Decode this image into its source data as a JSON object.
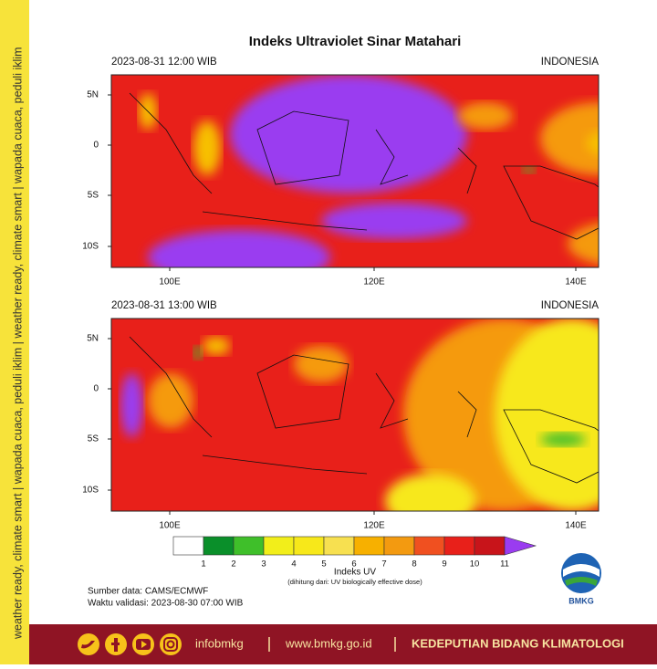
{
  "sidebar_text": "weather ready, climate smart | wapada cuaca, peduli iklim | weather ready, climate smart | wapada cuaca, peduli iklim",
  "title": "Indeks Ultraviolet Sinar Matahari",
  "panels": [
    {
      "time": "2023-08-31  12:00 WIB",
      "region": "INDONESIA",
      "lat_labels": [
        "5N",
        "0",
        "5S",
        "10S"
      ],
      "lon_labels": [
        "100E",
        "120E",
        "140E"
      ]
    },
    {
      "time": "2023-08-31  13:00 WIB",
      "region": "INDONESIA",
      "lat_labels": [
        "5N",
        "0",
        "5S",
        "10S"
      ],
      "lon_labels": [
        "100E",
        "120E",
        "140E"
      ]
    }
  ],
  "legend": {
    "labels": [
      "1",
      "2",
      "3",
      "4",
      "5",
      "6",
      "7",
      "8",
      "9",
      "10",
      "11"
    ],
    "title": "Indeks UV",
    "note": "(dihitung dari: UV biologically effective dose)"
  },
  "source": "Sumber data: CAMS/ECMWF",
  "validity": "Waktu validasi: 2023-08-30 07:00 WIB",
  "logo": "BMKG",
  "footer": {
    "handle": "infobmkg",
    "website": "www.bmkg.go.id",
    "department": "KEDEPUTIAN BIDANG KLIMATOLOGI"
  }
}
